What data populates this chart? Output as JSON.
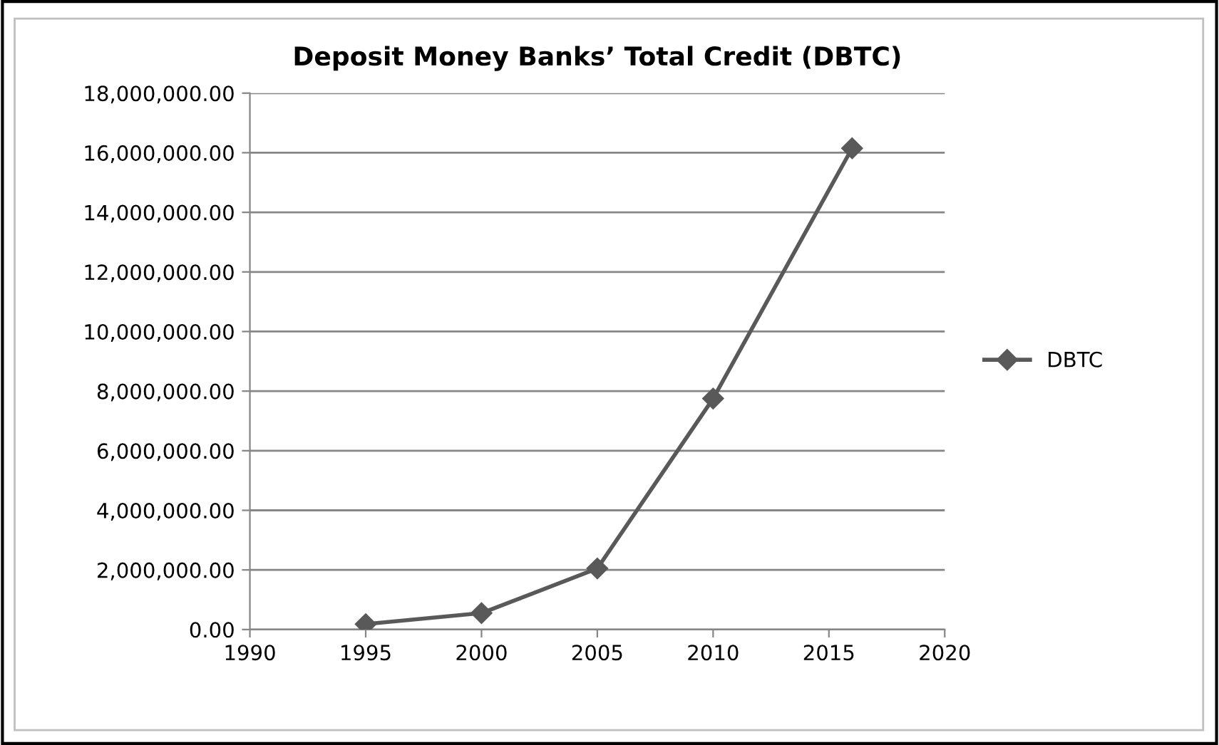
{
  "chart_data": {
    "type": "line",
    "title": "Deposit Money Banks’ Total Credit (DBTC)",
    "series": [
      {
        "name": "DBTC",
        "color": "#595959",
        "x": [
          1995,
          2000,
          2005,
          2010,
          2016
        ],
        "values": [
          180000,
          550000,
          2050000,
          7750000,
          16150000
        ]
      }
    ],
    "xlim": [
      1990,
      2020
    ],
    "xticks": [
      1990,
      1995,
      2000,
      2005,
      2010,
      2015,
      2020
    ],
    "ylim": [
      0,
      18000000
    ],
    "yticks": [
      {
        "value": 0,
        "label": "0.00"
      },
      {
        "value": 2000000,
        "label": "2,000,000.00"
      },
      {
        "value": 4000000,
        "label": "4,000,000.00"
      },
      {
        "value": 6000000,
        "label": "6,000,000.00"
      },
      {
        "value": 8000000,
        "label": "8,000,000.00"
      },
      {
        "value": 10000000,
        "label": "10,000,000.00"
      },
      {
        "value": 12000000,
        "label": "12,000,000.00"
      },
      {
        "value": 14000000,
        "label": "14,000,000.00"
      },
      {
        "value": 16000000,
        "label": "16,000,000.00"
      },
      {
        "value": 18000000,
        "label": "18,000,000.00"
      }
    ],
    "grid": "y",
    "legend": "right",
    "marker": "diamond",
    "line_style": "solid"
  }
}
